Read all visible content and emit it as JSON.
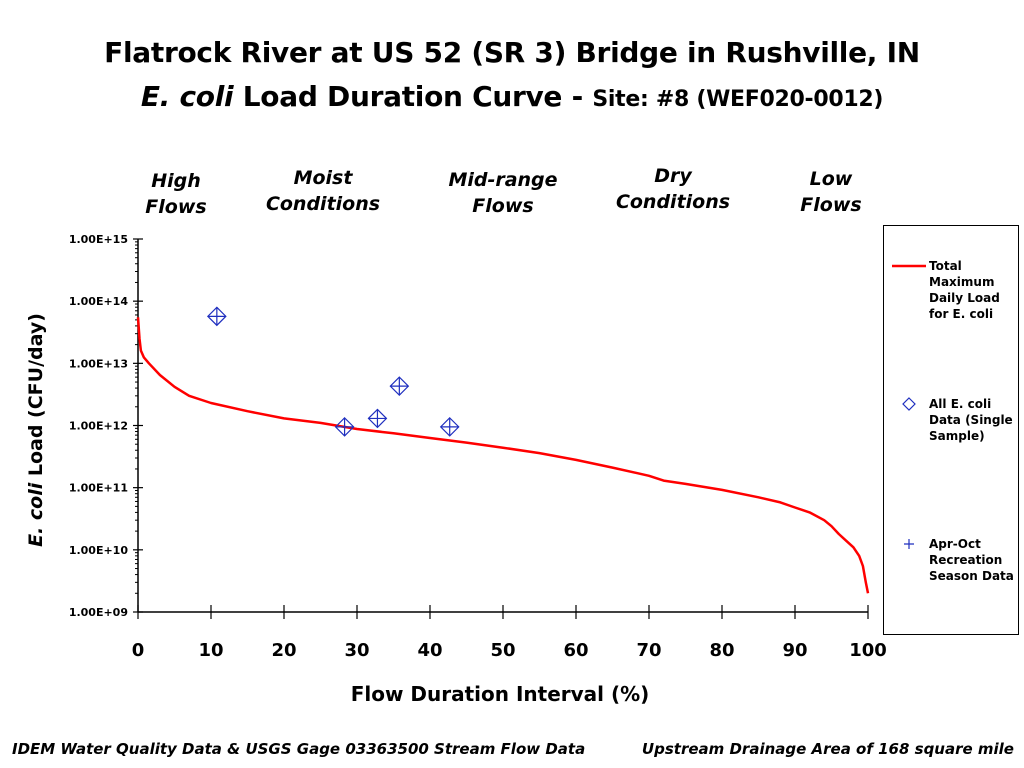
{
  "title_line1": "Flatrock River at US 52 (SR 3) Bridge in Rushville, IN",
  "title_line2_italic": "E. coli",
  "title_line2_main": " Load Duration Curve - ",
  "title_line2_site": "Site: #8 (WEF020-0012)",
  "regimes": [
    {
      "label": "High\nFlows"
    },
    {
      "label": "Moist\nConditions"
    },
    {
      "label": "Mid-range\nFlows"
    },
    {
      "label": "Dry\nConditions"
    },
    {
      "label": "Low\nFlows"
    }
  ],
  "footer_left": "IDEM Water Quality Data & USGS Gage 03363500 Stream Flow Data",
  "footer_right": "Upstream Drainage Area of 168 square mile",
  "colors": {
    "curve": "#ff0000",
    "markers": "#1f2fbf",
    "axis": "#000000"
  },
  "chart_data": {
    "type": "scatter",
    "xlabel": "Flow Duration Interval (%)",
    "ylabel_italic": "E. coli",
    "ylabel_rest": "  Load (CFU/day)",
    "xlim": [
      0,
      100
    ],
    "xticks": [
      0,
      10,
      20,
      30,
      40,
      50,
      60,
      70,
      80,
      90,
      100
    ],
    "ylim_exp": [
      9,
      15
    ],
    "y_scale": "log",
    "ytick_labels": [
      "1.00E+09",
      "1.00E+10",
      "1.00E+11",
      "1.00E+12",
      "1.00E+13",
      "1.00E+14",
      "1.00E+15"
    ],
    "legend_position": "right",
    "series": [
      {
        "name": "Total Maximum Daily Load for E. coli",
        "kind": "line",
        "points": [
          [
            0,
            55000000000000.0
          ],
          [
            0.2,
            25000000000000.0
          ],
          [
            0.4,
            16000000000000.0
          ],
          [
            0.8,
            12500000000000.0
          ],
          [
            1.5,
            10000000000000.0
          ],
          [
            3,
            6500000000000.0
          ],
          [
            5,
            4200000000000.0
          ],
          [
            7,
            3000000000000.0
          ],
          [
            10,
            2300000000000.0
          ],
          [
            15,
            1700000000000.0
          ],
          [
            20,
            1300000000000.0
          ],
          [
            25,
            1100000000000.0
          ],
          [
            30,
            880000000000.0
          ],
          [
            35,
            750000000000.0
          ],
          [
            40,
            630000000000.0
          ],
          [
            45,
            530000000000.0
          ],
          [
            50,
            440000000000.0
          ],
          [
            55,
            360000000000.0
          ],
          [
            60,
            280000000000.0
          ],
          [
            65,
            210000000000.0
          ],
          [
            70,
            155000000000.0
          ],
          [
            72,
            130000000000.0
          ],
          [
            75,
            115000000000.0
          ],
          [
            80,
            92000000000.0
          ],
          [
            85,
            70000000000.0
          ],
          [
            88,
            58000000000.0
          ],
          [
            90,
            48000000000.0
          ],
          [
            92,
            40000000000.0
          ],
          [
            94,
            30000000000.0
          ],
          [
            95,
            24000000000.0
          ],
          [
            96,
            18000000000.0
          ],
          [
            97,
            14000000000.0
          ],
          [
            98,
            11000000000.0
          ],
          [
            98.8,
            8000000000.0
          ],
          [
            99.3,
            5500000000.0
          ],
          [
            99.7,
            3000000000.0
          ],
          [
            100,
            2000000000.0
          ]
        ]
      },
      {
        "name": "All E. coli Data (Single Sample)",
        "kind": "diamond",
        "points": [
          [
            10.8,
            57000000000000.0
          ],
          [
            28.3,
            950000000000.0
          ],
          [
            32.8,
            1300000000000.0
          ],
          [
            35.8,
            4300000000000.0
          ],
          [
            42.7,
            950000000000.0
          ]
        ]
      },
      {
        "name": "Apr-Oct Recreation Season Data",
        "kind": "plus",
        "points": [
          [
            10.8,
            57000000000000.0
          ],
          [
            28.3,
            950000000000.0
          ],
          [
            32.8,
            1300000000000.0
          ],
          [
            35.8,
            4300000000000.0
          ],
          [
            42.7,
            950000000000.0
          ]
        ]
      }
    ]
  }
}
